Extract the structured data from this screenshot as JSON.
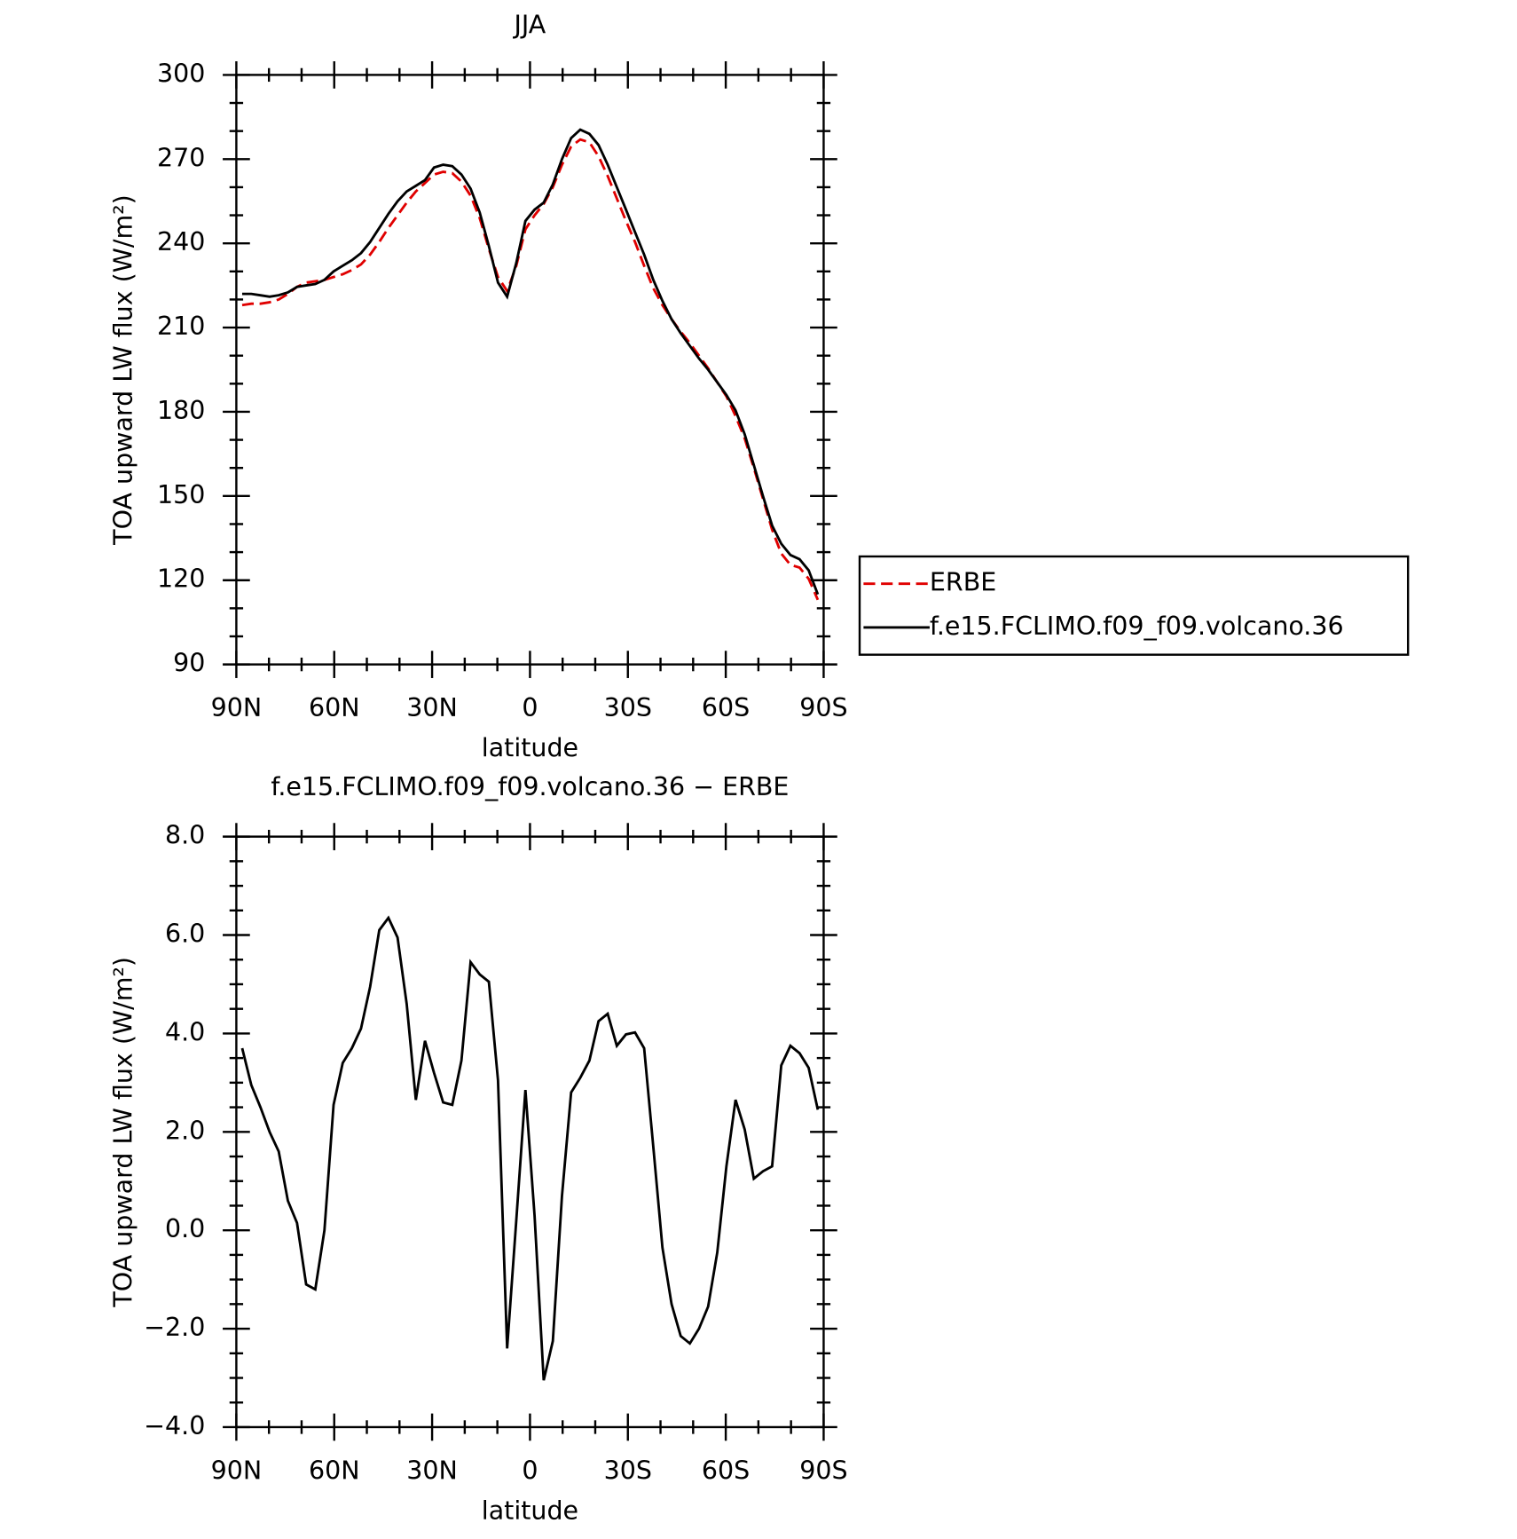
{
  "chart_data": [
    {
      "type": "line",
      "title": "JJA",
      "xlabel": "latitude",
      "ylabel": "TOA upward LW flux (W/m²)",
      "x": [
        88.2,
        85.4,
        82.6,
        79.8,
        77,
        74.2,
        71.4,
        68.6,
        65.8,
        63,
        60.2,
        57.4,
        54.6,
        51.8,
        49,
        46.2,
        43.4,
        40.6,
        37.8,
        35,
        32.2,
        29.4,
        26.6,
        23.8,
        21,
        18.2,
        15.4,
        12.6,
        9.8,
        7,
        4.2,
        1.4,
        -1.4,
        -4.2,
        -7,
        -9.8,
        -12.6,
        -15.4,
        -18.2,
        -21,
        -23.8,
        -26.6,
        -29.4,
        -32.2,
        -35,
        -37.8,
        -40.6,
        -43.4,
        -46.2,
        -49,
        -51.8,
        -54.6,
        -57.4,
        -60.2,
        -63,
        -65.8,
        -68.6,
        -71.4,
        -74.2,
        -77,
        -79.8,
        -82.6,
        -85.4,
        -88.2
      ],
      "series": [
        {
          "name": "ERBE",
          "color": "#e00000",
          "linestyle": "dashed",
          "values": [
            218,
            218.5,
            218.5,
            219,
            220,
            222,
            224.5,
            226,
            226.5,
            227,
            228,
            229,
            230.5,
            232.5,
            236,
            240.5,
            245.5,
            250,
            254.5,
            258.5,
            261.5,
            264.5,
            265.5,
            265,
            262,
            257,
            249,
            238,
            228,
            223,
            232,
            245,
            250,
            254,
            260,
            268,
            274.5,
            277,
            276,
            271,
            264,
            256,
            248,
            240.5,
            232,
            224,
            218,
            213,
            208.5,
            204.5,
            200,
            195.5,
            190.5,
            185.5,
            178.5,
            170.5,
            160,
            149,
            138,
            129.5,
            125.5,
            124.5,
            120.5,
            113
          ]
        },
        {
          "name": "f.e15.FCLIMO.f09_f09.volcano.36",
          "color": "#000000",
          "linestyle": "solid",
          "values": [
            222,
            222,
            221.5,
            221,
            221.5,
            222.5,
            224.5,
            225,
            225.5,
            227,
            230,
            232,
            234,
            236.5,
            240.5,
            245.5,
            250.5,
            255,
            258.5,
            260.5,
            262.5,
            267,
            268,
            267.5,
            264.5,
            259.5,
            251,
            239,
            226,
            221,
            233,
            248,
            252,
            254.5,
            261,
            270,
            277.5,
            280.5,
            279,
            275,
            268,
            260,
            252,
            244,
            236,
            227,
            219.5,
            213,
            208,
            203.5,
            199,
            195,
            190.5,
            186,
            180.5,
            172,
            161,
            150,
            139.5,
            133,
            129,
            127.5,
            123.5,
            115
          ]
        }
      ],
      "xlim": [
        90,
        -90
      ],
      "xticks": [
        {
          "value": 90,
          "label": "90N"
        },
        {
          "value": 60,
          "label": "60N"
        },
        {
          "value": 30,
          "label": "30N"
        },
        0,
        {
          "value": -30,
          "label": "30S"
        },
        {
          "value": -60,
          "label": "60S"
        },
        {
          "value": -90,
          "label": "90S"
        }
      ],
      "ylim": [
        90,
        300
      ],
      "yticks": [
        90,
        120,
        150,
        180,
        210,
        240,
        270,
        300
      ],
      "legend": "right"
    },
    {
      "type": "line",
      "title": "f.e15.FCLIMO.f09_f09.volcano.36 − ERBE",
      "xlabel": "latitude",
      "ylabel": "TOA upward LW flux (W/m²)",
      "x": [
        88.2,
        85.4,
        82.6,
        79.8,
        77,
        74.2,
        71.4,
        68.6,
        65.8,
        63,
        60.2,
        57.4,
        54.6,
        51.8,
        49,
        46.2,
        43.4,
        40.6,
        37.8,
        35,
        32.2,
        29.4,
        26.6,
        23.8,
        21,
        18.2,
        15.4,
        12.6,
        9.8,
        7,
        4.2,
        1.4,
        -1.4,
        -4.2,
        -7,
        -9.8,
        -12.6,
        -15.4,
        -18.2,
        -21,
        -23.8,
        -26.6,
        -29.4,
        -32.2,
        -35,
        -37.8,
        -40.6,
        -43.4,
        -46.2,
        -49,
        -51.8,
        -54.6,
        -57.4,
        -60.2,
        -63,
        -65.8,
        -68.6,
        -71.4,
        -74.2,
        -77,
        -79.8,
        -82.6,
        -85.4,
        -88.2
      ],
      "series": [
        {
          "color": "#000000",
          "linestyle": "solid",
          "values": [
            3.7,
            2.95,
            2.5,
            2.0,
            1.6,
            0.6,
            0.15,
            -1.1,
            -1.2,
            0.0,
            2.55,
            3.4,
            3.7,
            4.1,
            4.95,
            6.1,
            6.35,
            5.95,
            4.6,
            2.65,
            3.85,
            3.2,
            2.6,
            2.55,
            3.45,
            5.45,
            5.2,
            5.05,
            3.05,
            -2.4,
            0.2,
            2.85,
            0.3,
            -3.05,
            -2.25,
            0.7,
            2.8,
            3.1,
            3.45,
            4.25,
            4.4,
            3.75,
            3.98,
            4.02,
            3.7,
            1.7,
            -0.35,
            -1.5,
            -2.15,
            -2.3,
            -2.0,
            -1.55,
            -0.45,
            1.3,
            2.65,
            2.05,
            1.05,
            1.2,
            1.3,
            3.35,
            3.75,
            3.6,
            3.3,
            2.45
          ]
        }
      ],
      "xlim": [
        90,
        -90
      ],
      "xticks": [
        {
          "value": 90,
          "label": "90N"
        },
        {
          "value": 60,
          "label": "60N"
        },
        {
          "value": 30,
          "label": "30N"
        },
        0,
        {
          "value": -30,
          "label": "30S"
        },
        {
          "value": -60,
          "label": "60S"
        },
        {
          "value": -90,
          "label": "90S"
        }
      ],
      "ylim": [
        -4,
        8
      ],
      "yticks": [
        {
          "value": -4,
          "label": "−4.0"
        },
        {
          "value": -2,
          "label": "−2.0"
        },
        {
          "value": 0,
          "label": "0.0"
        },
        {
          "value": 2,
          "label": "2.0"
        },
        {
          "value": 4,
          "label": "4.0"
        },
        {
          "value": 6,
          "label": "6.0"
        },
        {
          "value": 8,
          "label": "8.0"
        }
      ]
    }
  ]
}
